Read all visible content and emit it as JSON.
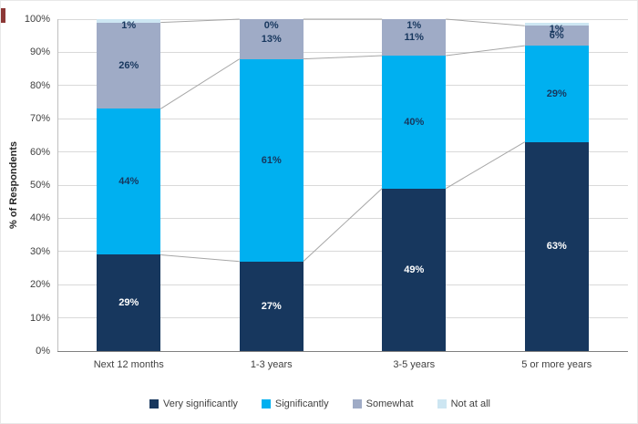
{
  "decor": {
    "accent_color": "#8c3836"
  },
  "chart_data": {
    "type": "bar",
    "stacked": true,
    "percent": true,
    "title": "",
    "xlabel": "",
    "ylabel": "% of Respondents",
    "ylim": [
      0,
      100
    ],
    "grid": true,
    "legend_position": "bottom",
    "series_lines": true,
    "categories": [
      "Next 12 months",
      "1-3 years",
      "3-5 years",
      "5 or more years"
    ],
    "yticks": [
      "0%",
      "10%",
      "20%",
      "30%",
      "40%",
      "50%",
      "60%",
      "70%",
      "80%",
      "90%",
      "100%"
    ],
    "series": [
      {
        "name": "Very significantly",
        "color": "#17375e",
        "label_color": "#ffffff",
        "values": [
          29,
          27,
          49,
          63
        ]
      },
      {
        "name": "Significantly",
        "color": "#00b0f0",
        "label_color": "#17375e",
        "values": [
          44,
          61,
          40,
          29
        ]
      },
      {
        "name": "Somewhat",
        "color": "#9fabc6",
        "label_color": "#17375e",
        "values": [
          26,
          13,
          11,
          6
        ]
      },
      {
        "name": "Not at all",
        "color": "#cde6f2",
        "label_color": "#17375e",
        "values": [
          1,
          0,
          1,
          1
        ]
      }
    ],
    "series_line_color": "#a6a6a6",
    "gridline_color": "#d9d9d9"
  }
}
